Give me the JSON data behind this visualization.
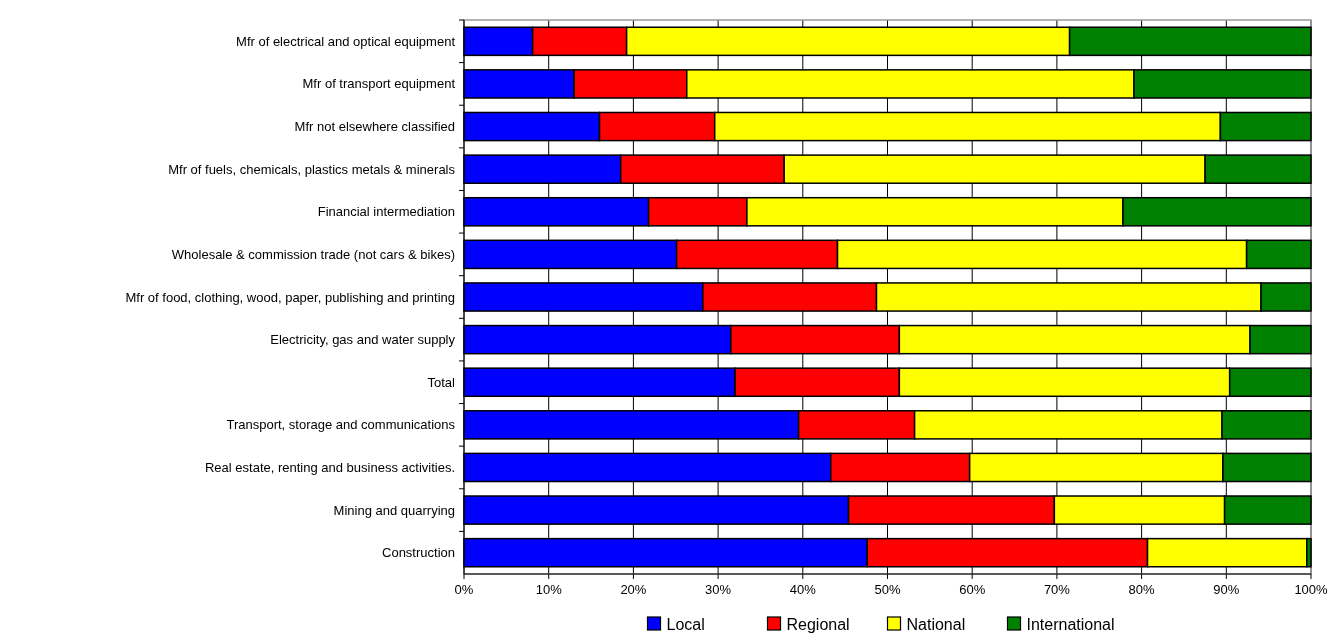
{
  "chart_data": {
    "type": "bar",
    "orientation": "horizontal",
    "stacked": true,
    "categories": [
      "Mfr of electrical and optical equipment",
      "Mfr of transport equipment",
      "Mfr not elsewhere classified",
      "Mfr of fuels, chemicals, plastics metals & minerals",
      "Financial intermediation",
      "Wholesale & commission trade (not cars & bikes)",
      "Mfr of food, clothing, wood, paper, publishing and printing",
      "Electricity, gas and water supply",
      "Total",
      "Transport, storage and communications",
      "Real estate, renting and business activities.",
      "Mining and quarrying",
      "Construction"
    ],
    "series": [
      {
        "name": "Local",
        "color": "#0000ff",
        "values": [
          8.1,
          13.0,
          16.0,
          18.5,
          21.8,
          25.1,
          28.2,
          31.5,
          32.0,
          39.5,
          43.3,
          45.4,
          47.6
        ]
      },
      {
        "name": "Regional",
        "color": "#ff0000",
        "values": [
          11.1,
          13.3,
          13.6,
          19.3,
          11.6,
          19.0,
          20.5,
          19.9,
          19.4,
          13.7,
          16.4,
          24.3,
          33.1
        ]
      },
      {
        "name": "National",
        "color": "#ffff00",
        "values": [
          52.3,
          52.8,
          59.7,
          49.7,
          44.4,
          48.3,
          45.4,
          41.4,
          39.0,
          36.3,
          29.9,
          20.1,
          18.8
        ]
      },
      {
        "name": "International",
        "color": "#008000",
        "values": [
          28.5,
          20.9,
          10.7,
          12.5,
          22.2,
          7.6,
          5.9,
          7.2,
          9.6,
          10.5,
          10.4,
          10.2,
          0.5
        ]
      }
    ],
    "xlim": [
      0,
      100
    ],
    "xticks": [
      {
        "value": 0,
        "label": "0%"
      },
      {
        "value": 10,
        "label": "10%"
      },
      {
        "value": 20,
        "label": "20%"
      },
      {
        "value": 30,
        "label": "30%"
      },
      {
        "value": 40,
        "label": "40%"
      },
      {
        "value": 50,
        "label": "50%"
      },
      {
        "value": 60,
        "label": "60%"
      },
      {
        "value": 70,
        "label": "70%"
      },
      {
        "value": 80,
        "label": "80%"
      },
      {
        "value": 90,
        "label": "90%"
      },
      {
        "value": 100,
        "label": "100%"
      }
    ],
    "grid": "x",
    "legend": "bottom"
  }
}
